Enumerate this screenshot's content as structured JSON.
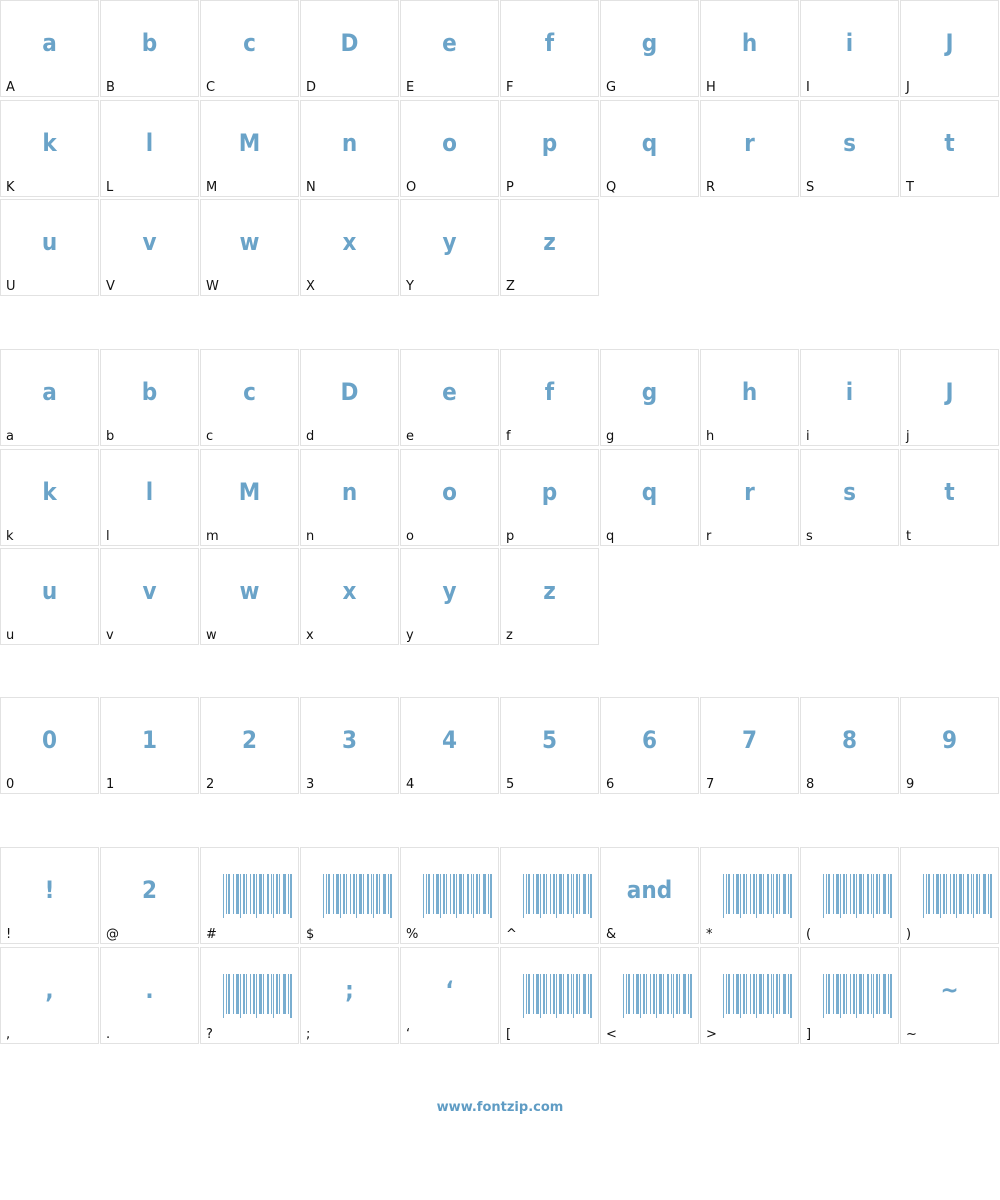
{
  "sections": [
    {
      "cells": [
        {
          "label": "A",
          "glyph": "a"
        },
        {
          "label": "B",
          "glyph": "b"
        },
        {
          "label": "C",
          "glyph": "c"
        },
        {
          "label": "D",
          "glyph": "D"
        },
        {
          "label": "E",
          "glyph": "e"
        },
        {
          "label": "F",
          "glyph": "f"
        },
        {
          "label": "G",
          "glyph": "g"
        },
        {
          "label": "H",
          "glyph": "h"
        },
        {
          "label": "I",
          "glyph": "i"
        },
        {
          "label": "J",
          "glyph": "J"
        },
        {
          "label": "K",
          "glyph": "k"
        },
        {
          "label": "L",
          "glyph": "l"
        },
        {
          "label": "M",
          "glyph": "M"
        },
        {
          "label": "N",
          "glyph": "n"
        },
        {
          "label": "O",
          "glyph": "o"
        },
        {
          "label": "P",
          "glyph": "p"
        },
        {
          "label": "Q",
          "glyph": "q"
        },
        {
          "label": "R",
          "glyph": "r"
        },
        {
          "label": "S",
          "glyph": "s"
        },
        {
          "label": "T",
          "glyph": "t"
        },
        {
          "label": "U",
          "glyph": "u"
        },
        {
          "label": "V",
          "glyph": "v"
        },
        {
          "label": "W",
          "glyph": "w"
        },
        {
          "label": "X",
          "glyph": "x"
        },
        {
          "label": "Y",
          "glyph": "y"
        },
        {
          "label": "Z",
          "glyph": "z"
        }
      ]
    },
    {
      "cells": [
        {
          "label": "a",
          "glyph": "a"
        },
        {
          "label": "b",
          "glyph": "b"
        },
        {
          "label": "c",
          "glyph": "c"
        },
        {
          "label": "d",
          "glyph": "D"
        },
        {
          "label": "e",
          "glyph": "e"
        },
        {
          "label": "f",
          "glyph": "f"
        },
        {
          "label": "g",
          "glyph": "g"
        },
        {
          "label": "h",
          "glyph": "h"
        },
        {
          "label": "i",
          "glyph": "i"
        },
        {
          "label": "j",
          "glyph": "J"
        },
        {
          "label": "k",
          "glyph": "k"
        },
        {
          "label": "l",
          "glyph": "l"
        },
        {
          "label": "m",
          "glyph": "M"
        },
        {
          "label": "n",
          "glyph": "n"
        },
        {
          "label": "o",
          "glyph": "o"
        },
        {
          "label": "p",
          "glyph": "p"
        },
        {
          "label": "q",
          "glyph": "q"
        },
        {
          "label": "r",
          "glyph": "r"
        },
        {
          "label": "s",
          "glyph": "s"
        },
        {
          "label": "t",
          "glyph": "t"
        },
        {
          "label": "u",
          "glyph": "u"
        },
        {
          "label": "v",
          "glyph": "v"
        },
        {
          "label": "w",
          "glyph": "w"
        },
        {
          "label": "x",
          "glyph": "x"
        },
        {
          "label": "y",
          "glyph": "y"
        },
        {
          "label": "z",
          "glyph": "z"
        }
      ]
    },
    {
      "cells": [
        {
          "label": "0",
          "glyph": "0"
        },
        {
          "label": "1",
          "glyph": "1"
        },
        {
          "label": "2",
          "glyph": "2"
        },
        {
          "label": "3",
          "glyph": "3"
        },
        {
          "label": "4",
          "glyph": "4"
        },
        {
          "label": "5",
          "glyph": "5"
        },
        {
          "label": "6",
          "glyph": "6"
        },
        {
          "label": "7",
          "glyph": "7"
        },
        {
          "label": "8",
          "glyph": "8"
        },
        {
          "label": "9",
          "glyph": "9"
        }
      ]
    },
    {
      "cells": [
        {
          "label": "!",
          "glyph": "!"
        },
        {
          "label": "@",
          "glyph": "2"
        },
        {
          "label": "#",
          "barcode": true
        },
        {
          "label": "$",
          "barcode": true
        },
        {
          "label": "%",
          "barcode": true
        },
        {
          "label": "^",
          "barcode": true
        },
        {
          "label": "&",
          "glyph": "and"
        },
        {
          "label": "*",
          "barcode": true
        },
        {
          "label": "(",
          "barcode": true
        },
        {
          "label": ")",
          "barcode": true
        },
        {
          "label": ",",
          "glyph": ","
        },
        {
          "label": ".",
          "glyph": "."
        },
        {
          "label": "?",
          "barcode": true
        },
        {
          "label": ";",
          "glyph": ";"
        },
        {
          "label": "‘",
          "glyph": "‘"
        },
        {
          "label": "[",
          "barcode": true
        },
        {
          "label": "<",
          "barcode": true
        },
        {
          "label": ">",
          "barcode": true
        },
        {
          "label": "]",
          "barcode": true
        },
        {
          "label": "~",
          "glyph": "~"
        }
      ]
    }
  ],
  "footer": "www.fontzip.com"
}
